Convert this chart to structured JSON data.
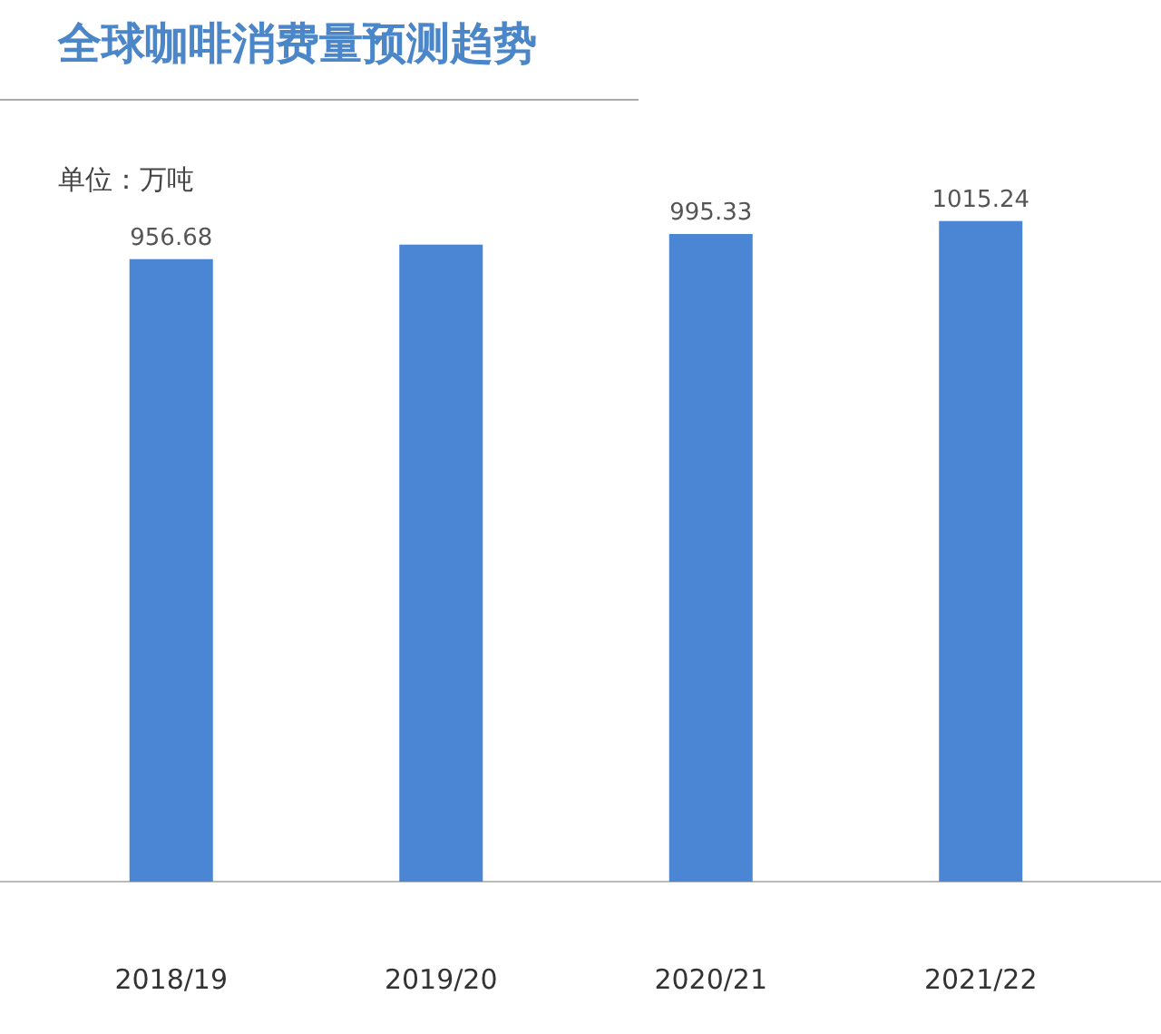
{
  "chart_data": {
    "type": "bar",
    "title": "全球咖啡消费量预测趋势",
    "annotations": [
      "单位：万吨"
    ],
    "categories": [
      "2018/19",
      "2019/20",
      "2020/21",
      "2021/22"
    ],
    "values": [
      956.68,
      979,
      995.33,
      1015.24
    ],
    "value_labels": [
      "956.68",
      null,
      "995.33",
      "1015.24"
    ],
    "color": "#4a86d4"
  }
}
